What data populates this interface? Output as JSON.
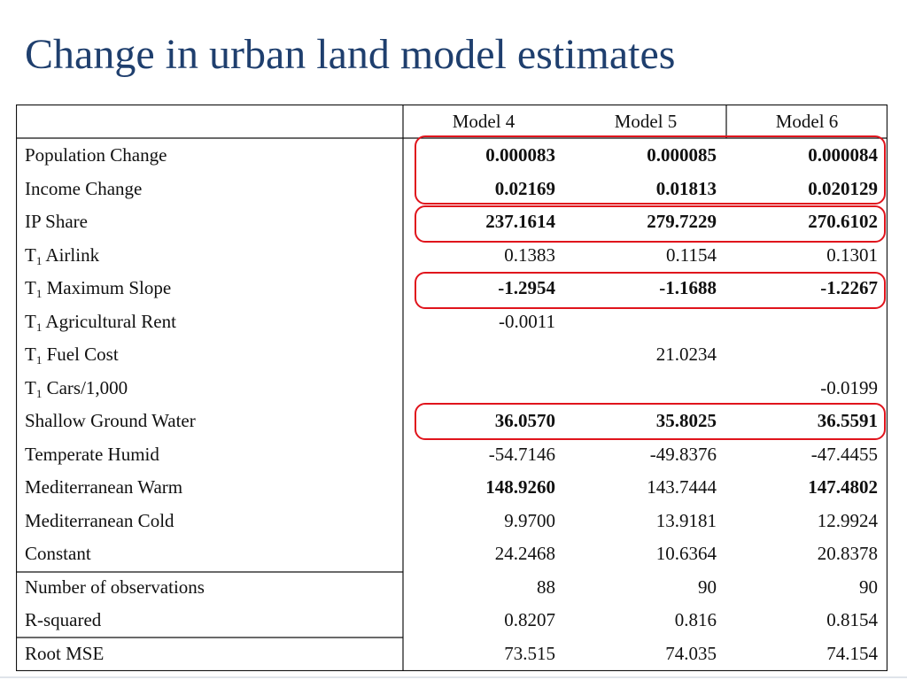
{
  "title": "Change in urban land model estimates",
  "columns": [
    "Model 4",
    "Model 5",
    "Model 6"
  ],
  "colors": {
    "title": "#1f3f6e",
    "highlight": "#e0141c"
  },
  "rows": [
    {
      "label": "Population Change",
      "label_sub": "",
      "label_rest": "",
      "m4": "0.000083",
      "m5": "0.000085",
      "m6": "0.000084",
      "bold": [
        true,
        true,
        true
      ]
    },
    {
      "label": "Income Change",
      "label_sub": "",
      "label_rest": "",
      "m4": "0.02169",
      "m5": "0.01813",
      "m6": "0.020129",
      "bold": [
        true,
        true,
        true
      ]
    },
    {
      "label": "IP Share",
      "label_sub": "",
      "label_rest": "",
      "m4": "237.1614",
      "m5": "279.7229",
      "m6": "270.6102",
      "bold": [
        true,
        true,
        true
      ]
    },
    {
      "label": "T",
      "label_sub": "1",
      "label_rest": " Airlink",
      "m4": "0.1383",
      "m5": "0.1154",
      "m6": "0.1301",
      "bold": [
        false,
        false,
        false
      ]
    },
    {
      "label": "T",
      "label_sub": "1",
      "label_rest": " Maximum Slope",
      "m4": "-1.2954",
      "m5": "-1.1688",
      "m6": "-1.2267",
      "bold": [
        true,
        true,
        true
      ]
    },
    {
      "label": "T",
      "label_sub": "1",
      "label_rest": " Agricultural Rent",
      "m4": "-0.0011",
      "m5": "",
      "m6": "",
      "bold": [
        false,
        false,
        false
      ]
    },
    {
      "label": "T",
      "label_sub": "1",
      "label_rest": " Fuel Cost",
      "m4": "",
      "m5": "21.0234",
      "m6": "",
      "bold": [
        false,
        false,
        false
      ]
    },
    {
      "label": "T",
      "label_sub": "1",
      "label_rest": " Cars/1,000",
      "m4": "",
      "m5": "",
      "m6": "-0.0199",
      "bold": [
        false,
        false,
        false
      ]
    },
    {
      "label": "Shallow Ground Water",
      "label_sub": "",
      "label_rest": "",
      "m4": "36.0570",
      "m5": "35.8025",
      "m6": "36.5591",
      "bold": [
        true,
        true,
        true
      ]
    },
    {
      "label": "Temperate Humid",
      "label_sub": "",
      "label_rest": "",
      "m4": "-54.7146",
      "m5": "-49.8376",
      "m6": "-47.4455",
      "bold": [
        false,
        false,
        false
      ]
    },
    {
      "label": "Mediterranean Warm",
      "label_sub": "",
      "label_rest": "",
      "m4": "148.9260",
      "m5": "143.7444",
      "m6": "147.4802",
      "bold": [
        true,
        false,
        true
      ]
    },
    {
      "label": "Mediterranean Cold",
      "label_sub": "",
      "label_rest": "",
      "m4": "9.9700",
      "m5": "13.9181",
      "m6": "12.9924",
      "bold": [
        false,
        false,
        false
      ]
    },
    {
      "label": "Constant",
      "label_sub": "",
      "label_rest": "",
      "m4": "24.2468",
      "m5": "10.6364",
      "m6": "20.8378",
      "bold": [
        false,
        false,
        false
      ]
    },
    {
      "label": "Number of observations",
      "label_sub": "",
      "label_rest": "",
      "m4": "88",
      "m5": "90",
      "m6": "90",
      "bold": [
        false,
        false,
        false
      ]
    },
    {
      "label": "R-squared",
      "label_sub": "",
      "label_rest": "",
      "m4": "0.8207",
      "m5": "0.816",
      "m6": "0.8154",
      "bold": [
        false,
        false,
        false
      ]
    },
    {
      "label": "Root MSE",
      "label_sub": "",
      "label_rest": "",
      "m4": "73.515",
      "m5": "74.035",
      "m6": "74.154",
      "bold": [
        false,
        false,
        false
      ]
    }
  ]
}
